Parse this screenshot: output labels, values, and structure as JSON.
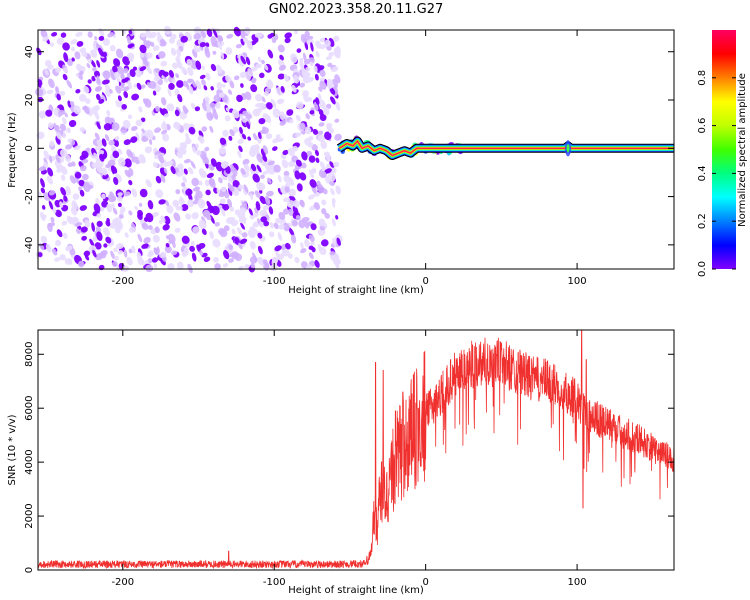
{
  "title": "GN02.2023.358.20.11.G27",
  "chart_data": [
    {
      "type": "heatmap",
      "xlabel": "Height of straight line (km)",
      "ylabel": "Frequency (Hz)",
      "xlim": [
        -256,
        164
      ],
      "ylim": [
        -50,
        49
      ],
      "x_ticks": [
        -200,
        -100,
        0,
        100
      ],
      "y_ticks": [
        -40,
        -20,
        0,
        20,
        40
      ],
      "noise_region_x": [
        -256,
        -57
      ],
      "signal_line": {
        "frequency": 0,
        "x_range": [
          -57,
          164
        ],
        "wobble_points": [
          [
            -57,
            0
          ],
          [
            -52,
            2
          ],
          [
            -48,
            1
          ],
          [
            -45,
            3
          ],
          [
            -42,
            0
          ],
          [
            -38,
            1
          ],
          [
            -34,
            -1
          ],
          [
            -30,
            0
          ],
          [
            -26,
            -1
          ],
          [
            -22,
            -3
          ],
          [
            -18,
            -2
          ],
          [
            -14,
            -1
          ],
          [
            -10,
            -2
          ],
          [
            -6,
            0
          ],
          [
            0,
            0
          ],
          [
            10,
            0
          ],
          [
            20,
            0
          ],
          [
            92,
            0
          ],
          [
            94,
            1
          ],
          [
            96,
            0
          ]
        ]
      },
      "colorbar": {
        "label": "Normalized spectral amplitude",
        "range": [
          0,
          1
        ],
        "ticks": [
          0.0,
          0.2,
          0.4,
          0.6,
          0.8
        ],
        "colormap": [
          "#ffffff",
          "#d0b0ff",
          "#8000ff",
          "#0000ff",
          "#00c0ff",
          "#00ff80",
          "#40ff00",
          "#ffff00",
          "#ff8000",
          "#ff0000",
          "#ff0080"
        ]
      }
    },
    {
      "type": "line",
      "xlabel": "Height of straight line (km)",
      "ylabel": "SNR (10 * v/v)",
      "xlim": [
        -256,
        164
      ],
      "ylim": [
        0,
        8900
      ],
      "x_ticks": [
        -200,
        -100,
        0,
        100
      ],
      "y_ticks": [
        0,
        2000,
        4000,
        6000,
        8000
      ],
      "color": "#f0302e",
      "series": [
        {
          "envelope": [
            [
              -256,
              250
            ],
            [
              -60,
              250
            ],
            [
              -40,
              270
            ],
            [
              -36,
              600
            ],
            [
              -34,
              2200
            ],
            [
              -32,
              1500
            ],
            [
              -30,
              2900
            ],
            [
              -26,
              2600
            ],
            [
              -22,
              3700
            ],
            [
              -18,
              4200
            ],
            [
              -12,
              4800
            ],
            [
              -6,
              5200
            ],
            [
              0,
              5800
            ],
            [
              10,
              6500
            ],
            [
              20,
              7300
            ],
            [
              30,
              7600
            ],
            [
              40,
              7800
            ],
            [
              50,
              7700
            ],
            [
              60,
              7400
            ],
            [
              70,
              7100
            ],
            [
              80,
              7000
            ],
            [
              90,
              6700
            ],
            [
              100,
              6300
            ],
            [
              105,
              5800
            ],
            [
              110,
              5700
            ],
            [
              120,
              5400
            ],
            [
              130,
              5100
            ],
            [
              140,
              4900
            ],
            [
              150,
              4500
            ],
            [
              164,
              4100
            ]
          ],
          "spikes": [
            [
              -130,
              700
            ],
            [
              -33,
              7700
            ],
            [
              -28,
              7400
            ],
            [
              -20,
              5900
            ],
            [
              -15,
              6600
            ],
            [
              103,
              8900
            ],
            [
              104,
              2300
            ],
            [
              106,
              7800
            ]
          ]
        }
      ]
    }
  ]
}
